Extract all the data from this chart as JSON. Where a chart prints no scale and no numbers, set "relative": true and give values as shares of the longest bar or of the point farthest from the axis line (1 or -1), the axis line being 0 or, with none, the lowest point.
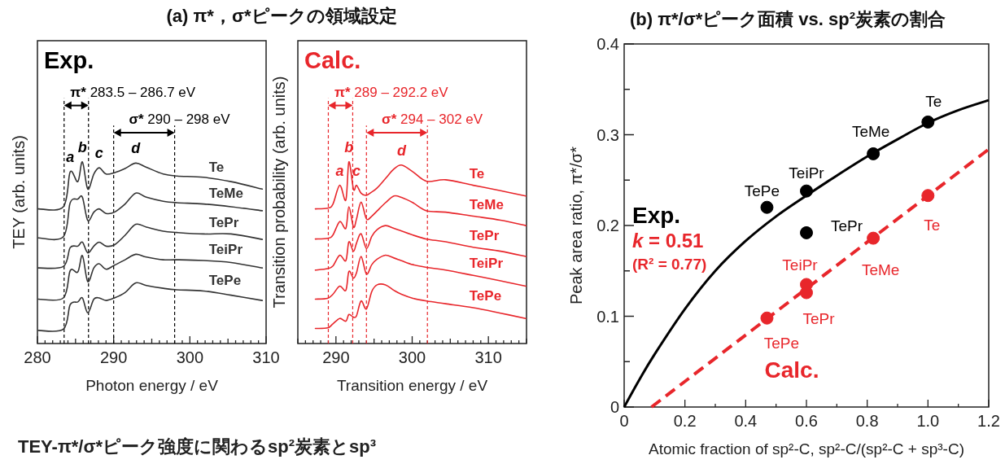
{
  "chart_data": [
    {
      "type": "line",
      "title": "(a) π*，σ*ピークの領域設定",
      "xlabel": "Photon energy / eV",
      "ylabel": "TEY (arb. units)",
      "relative": true,
      "xlim": [
        280,
        310
      ],
      "xticks": [
        280,
        {
          "value": 281,
          "label": null
        },
        {
          "value": 282,
          "label": null
        },
        {
          "value": 283,
          "label": null
        },
        {
          "value": 284,
          "label": null
        },
        {
          "value": 285,
          "label": null
        },
        {
          "value": 286,
          "label": null
        },
        {
          "value": 287,
          "label": null
        },
        {
          "value": 288,
          "label": null
        },
        {
          "value": 289,
          "label": null
        },
        290,
        {
          "value": 291,
          "label": null
        },
        {
          "value": 292,
          "label": null
        },
        {
          "value": 293,
          "label": null
        },
        {
          "value": 294,
          "label": null
        },
        {
          "value": 295,
          "label": null
        },
        {
          "value": 296,
          "label": null
        },
        {
          "value": 297,
          "label": null
        },
        {
          "value": 298,
          "label": null
        },
        {
          "value": 299,
          "label": null
        },
        300,
        {
          "value": 301,
          "label": null
        },
        {
          "value": 302,
          "label": null
        },
        {
          "value": 303,
          "label": null
        },
        {
          "value": 304,
          "label": null
        },
        {
          "value": 305,
          "label": null
        },
        {
          "value": 306,
          "label": null
        },
        {
          "value": 307,
          "label": null
        },
        {
          "value": 308,
          "label": null
        },
        {
          "value": 309,
          "label": null
        },
        310
      ],
      "x": [
        280.1,
        283.4,
        284.3,
        285.3,
        285.9,
        286.6,
        287.4,
        288.1,
        289.0,
        290.1,
        291.5,
        292.9,
        294.3,
        296.5,
        298.3,
        301.8,
        305.4,
        309.5
      ],
      "series": [
        {
          "name": "Te",
          "color": "#333333",
          "values": [
            0.741,
            0.753,
            0.945,
            0.891,
            1.0,
            0.85,
            0.933,
            0.967,
            0.933,
            0.94,
            0.963,
            0.993,
            0.97,
            0.933,
            0.922,
            0.915,
            0.891,
            0.85
          ]
        },
        {
          "name": "TeMe",
          "color": "#333333",
          "values": [
            0.581,
            0.588,
            0.775,
            0.795,
            0.805,
            0.678,
            0.723,
            0.741,
            0.716,
            0.723,
            0.768,
            0.828,
            0.805,
            0.783,
            0.775,
            0.768,
            0.753,
            0.731
          ]
        },
        {
          "name": "TePr",
          "color": "#333333",
          "values": [
            0.416,
            0.424,
            0.528,
            0.536,
            0.558,
            0.499,
            0.536,
            0.558,
            0.536,
            0.543,
            0.596,
            0.656,
            0.641,
            0.618,
            0.611,
            0.603,
            0.603,
            0.573
          ]
        },
        {
          "name": "TeiPr",
          "color": "#333333",
          "values": [
            0.244,
            0.251,
            0.401,
            0.394,
            0.484,
            0.341,
            0.416,
            0.439,
            0.409,
            0.431,
            0.461,
            0.491,
            0.476,
            0.461,
            0.461,
            0.457,
            0.446,
            0.416
          ]
        },
        {
          "name": "TePe",
          "color": "#333333",
          "values": [
            0.072,
            0.079,
            0.214,
            0.229,
            0.251,
            0.169,
            0.244,
            0.251,
            0.237,
            0.251,
            0.281,
            0.334,
            0.319,
            0.304,
            0.296,
            0.289,
            0.266,
            0.237
          ]
        }
      ],
      "ref_lines": [
        {
          "axis": "x",
          "value": 283.5,
          "color": "#000000",
          "line_style": "dashed"
        },
        {
          "axis": "x",
          "value": 286.7,
          "color": "#000000",
          "line_style": "dashed"
        },
        {
          "axis": "x",
          "value": 290,
          "color": "#000000",
          "line_style": "dashed"
        },
        {
          "axis": "x",
          "value": 298,
          "color": "#000000",
          "line_style": "dashed"
        }
      ],
      "annotations": [
        "Exp.",
        "π* 283.5 – 286.7 eV",
        "σ* 290 – 298 eV",
        {
          "text": "a",
          "x": 284.3,
          "y": 0.945
        },
        {
          "text": "b",
          "x": 285.9,
          "y": 1.0
        },
        {
          "text": "c",
          "x": 288.1,
          "y": 0.967
        },
        {
          "text": "d",
          "x": 292.9,
          "y": 0.993
        },
        "TEY-π*/σ*ピーク強度に関わるsp²炭素とsp³"
      ]
    },
    {
      "type": "line",
      "xlabel": "Transition energy / eV",
      "ylabel": "Transition probability  (arb. units)",
      "relative": true,
      "xlim": [
        285,
        315
      ],
      "xticks": [
        {
          "value": 285,
          "label": null
        },
        {
          "value": 286,
          "label": null
        },
        {
          "value": 287,
          "label": null
        },
        {
          "value": 288,
          "label": null
        },
        {
          "value": 289,
          "label": null
        },
        290,
        {
          "value": 291,
          "label": null
        },
        {
          "value": 292,
          "label": null
        },
        {
          "value": 293,
          "label": null
        },
        {
          "value": 294,
          "label": null
        },
        {
          "value": 295,
          "label": null
        },
        {
          "value": 296,
          "label": null
        },
        {
          "value": 297,
          "label": null
        },
        {
          "value": 298,
          "label": null
        },
        {
          "value": 299,
          "label": null
        },
        300,
        {
          "value": 301,
          "label": null
        },
        {
          "value": 302,
          "label": null
        },
        {
          "value": 303,
          "label": null
        },
        {
          "value": 304,
          "label": null
        },
        {
          "value": 305,
          "label": null
        },
        {
          "value": 306,
          "label": null
        },
        {
          "value": 307,
          "label": null
        },
        {
          "value": 308,
          "label": null
        },
        {
          "value": 309,
          "label": null
        },
        310,
        {
          "value": 311,
          "label": null
        },
        {
          "value": 312,
          "label": null
        },
        {
          "value": 313,
          "label": null
        },
        {
          "value": 314,
          "label": null
        },
        {
          "value": 315,
          "label": null
        }
      ],
      "x": [
        287.3,
        288.9,
        289.6,
        290.5,
        291.3,
        291.7,
        292.3,
        292.7,
        293.3,
        294.0,
        294.7,
        295.4,
        296.5,
        297.6,
        298.6,
        300.1,
        301.9,
        304.4,
        308.0,
        311.6,
        314.9
      ],
      "series": [
        {
          "name": "Te",
          "color": "#e8262b",
          "values": [
            0.741,
            0.745,
            0.767,
            0.871,
            0.79,
            1.0,
            0.849,
            0.871,
            0.827,
            0.816,
            0.834,
            0.856,
            0.908,
            0.96,
            0.982,
            0.945,
            0.893,
            0.901,
            0.871,
            0.841,
            0.812
          ]
        },
        {
          "name": "TeMe",
          "color": "#e8262b",
          "values": [
            0.575,
            0.579,
            0.597,
            0.671,
            0.634,
            0.753,
            0.641,
            0.686,
            0.778,
            0.686,
            0.701,
            0.73,
            0.775,
            0.812,
            0.804,
            0.775,
            0.73,
            0.723,
            0.701,
            0.679,
            0.649
          ]
        },
        {
          "name": "TePr",
          "color": "#e8262b",
          "values": [
            0.404,
            0.412,
            0.427,
            0.486,
            0.456,
            0.56,
            0.508,
            0.553,
            0.604,
            0.523,
            0.59,
            0.627,
            0.649,
            0.634,
            0.619,
            0.597,
            0.575,
            0.56,
            0.53,
            0.508,
            0.479
          ]
        },
        {
          "name": "TeiPr",
          "color": "#e8262b",
          "values": [
            0.244,
            0.249,
            0.271,
            0.316,
            0.293,
            0.397,
            0.36,
            0.39,
            0.479,
            0.382,
            0.434,
            0.464,
            0.486,
            0.471,
            0.456,
            0.434,
            0.419,
            0.404,
            0.375,
            0.345,
            0.316
          ]
        },
        {
          "name": "TePe",
          "color": "#e8262b",
          "values": [
            0.083,
            0.086,
            0.108,
            0.138,
            0.123,
            0.16,
            0.145,
            0.153,
            0.234,
            0.19,
            0.286,
            0.323,
            0.323,
            0.293,
            0.271,
            0.249,
            0.234,
            0.219,
            0.197,
            0.167,
            0.138
          ]
        }
      ],
      "ref_lines": [
        {
          "axis": "x",
          "value": 289,
          "color": "#e8262b",
          "line_style": "dashed"
        },
        {
          "axis": "x",
          "value": 292.2,
          "color": "#e8262b",
          "line_style": "dashed"
        },
        {
          "axis": "x",
          "value": 294,
          "color": "#e8262b",
          "line_style": "dashed"
        },
        {
          "axis": "x",
          "value": 302,
          "color": "#e8262b",
          "line_style": "dashed"
        }
      ],
      "annotations": [
        "Calc.",
        "π* 289 – 292.2 eV",
        "σ* 294 – 302 eV",
        {
          "text": "a",
          "x": 290.5,
          "y": 0.871
        },
        {
          "text": "b",
          "x": 291.7,
          "y": 1.0
        },
        {
          "text": "c",
          "x": 292.7,
          "y": 0.871
        },
        {
          "text": "d",
          "x": 298.6,
          "y": 0.982
        }
      ]
    },
    {
      "type": "scatter",
      "title": "(b) π*/σ*ピーク面積 vs. sp²炭素の割合",
      "xlabel": "Atomic fraction of sp²-C, sp²-C/(sp²-C + sp³-C)",
      "ylabel": "Peak area ratio, π*/σ*",
      "xlim": [
        0,
        1.2
      ],
      "ylim": [
        0,
        0.4
      ],
      "xticks": [
        0,
        {
          "value": 0.1,
          "label": null
        },
        0.2,
        {
          "value": 0.3,
          "label": null
        },
        0.4,
        {
          "value": 0.5,
          "label": null
        },
        0.6,
        {
          "value": 0.7,
          "label": null
        },
        0.8,
        {
          "value": 0.9,
          "label": null
        },
        {
          "value": 1,
          "label": "1.0"
        },
        {
          "value": 1.1,
          "label": null
        },
        1.2
      ],
      "yticks": [
        0,
        {
          "value": 0.05,
          "label": null
        },
        0.1,
        {
          "value": 0.15,
          "label": null
        },
        0.2,
        {
          "value": 0.25,
          "label": null
        },
        0.3,
        {
          "value": 0.35,
          "label": null
        },
        0.4
      ],
      "series": [
        {
          "type": "line",
          "name": "Exp.",
          "color": "#000000",
          "line_style": "solid",
          "x": [
            0,
            0.05,
            0.1,
            0.2,
            0.3,
            0.4,
            0.5,
            0.6,
            0.7,
            0.8,
            0.9,
            1.0,
            1.1,
            1.2
          ],
          "values": [
            0,
            0.03,
            0.058,
            0.108,
            0.15,
            0.183,
            0.21,
            0.233,
            0.255,
            0.276,
            0.295,
            0.313,
            0.327,
            0.338
          ]
        },
        {
          "type": "scatter",
          "color": "#000000",
          "marker": "circle",
          "x": [
            1.0,
            0.82,
            0.6,
            0.47,
            0.6
          ],
          "values": [
            0.314,
            0.279,
            0.238,
            0.22,
            0.192
          ]
        },
        {
          "type": "line",
          "name": "Calc.",
          "color": "#e8262b",
          "line_style": "dashed",
          "x": [
            0.09,
            1.2
          ],
          "values": [
            0,
            0.284
          ]
        },
        {
          "type": "scatter",
          "color": "#e8262b",
          "marker": "circle",
          "x": [
            1.0,
            0.82,
            0.6,
            0.6,
            0.47
          ],
          "values": [
            0.233,
            0.186,
            0.135,
            0.126,
            0.098
          ]
        }
      ],
      "annotations": [
        {
          "text": "Te",
          "x": 1.0,
          "y": 0.314
        },
        {
          "text": "TeMe",
          "x": 0.82,
          "y": 0.279
        },
        {
          "text": "TeiPr",
          "x": 0.6,
          "y": 0.238
        },
        {
          "text": "TePe",
          "x": 0.47,
          "y": 0.22
        },
        {
          "text": "TePr",
          "x": 0.6,
          "y": 0.192
        },
        {
          "text": "Te",
          "x": 1.0,
          "y": 0.233
        },
        {
          "text": "TeMe",
          "x": 0.82,
          "y": 0.186
        },
        {
          "text": "TeiPr",
          "x": 0.6,
          "y": 0.135
        },
        {
          "text": "TePr",
          "x": 0.6,
          "y": 0.126
        },
        {
          "text": "TePe",
          "x": 0.47,
          "y": 0.098
        },
        "k = 0.51",
        "(R² = 0.77)"
      ]
    }
  ]
}
